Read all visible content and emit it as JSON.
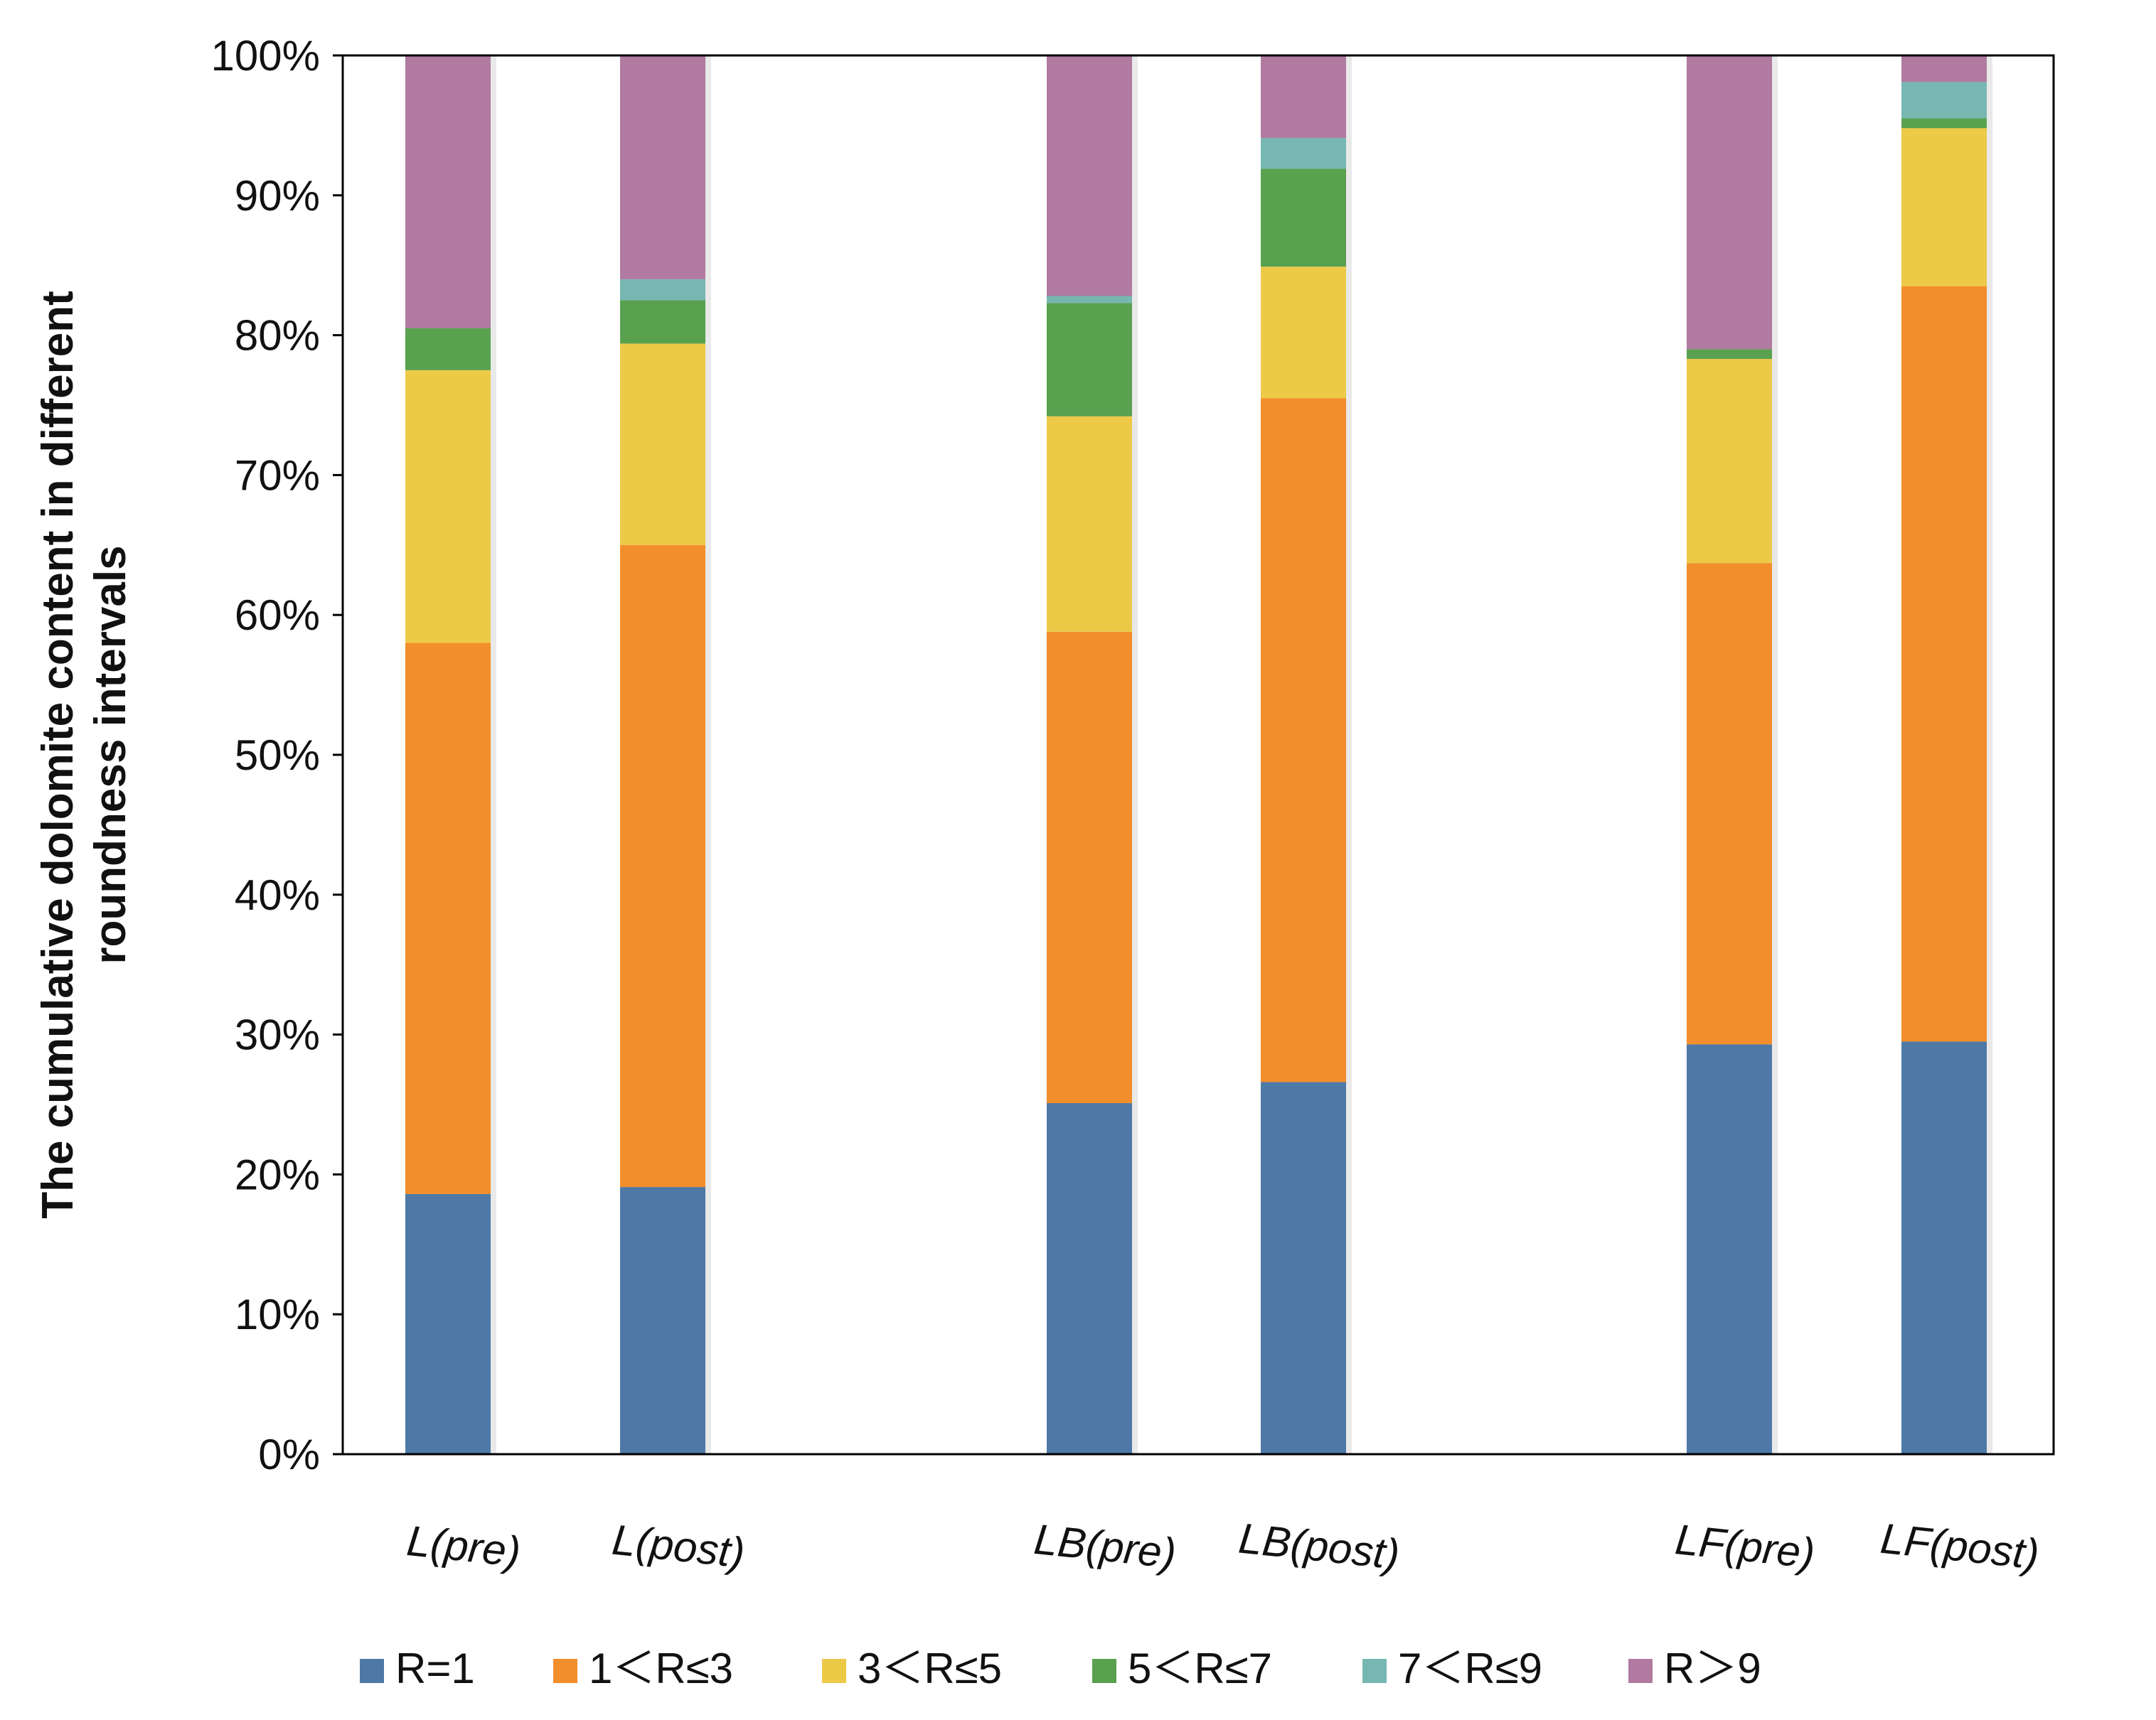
{
  "chart_data": {
    "type": "bar",
    "stacked": true,
    "percent_stacked": true,
    "title": "",
    "xlabel": "",
    "ylabel": "The cumulative dolomite content in different roundness intervals",
    "ylabel_lines": [
      "The cumulative dolomite content in different",
      "roundness intervals"
    ],
    "ylim": [
      0,
      100
    ],
    "yticks": [
      "0%",
      "10%",
      "20%",
      "30%",
      "40%",
      "50%",
      "60%",
      "70%",
      "80%",
      "90%",
      "100%"
    ],
    "categories": [
      "L(pre)",
      "L(post)",
      "LB(pre)",
      "LB(post)",
      "LF(pre)",
      "LF(post)"
    ],
    "groups": [
      [
        "L(pre)",
        "L(post)"
      ],
      [
        "LB(pre)",
        "LB(post)"
      ],
      [
        "LF(pre)",
        "LF(post)"
      ]
    ],
    "legend_position": "bottom",
    "series": [
      {
        "name": "R=1",
        "color": "#4e79a7",
        "values": [
          18.6,
          19.1,
          25.1,
          26.6,
          29.3,
          29.5
        ]
      },
      {
        "name": "1＜R≤3",
        "color": "#f28e2b",
        "values": [
          39.4,
          45.9,
          33.7,
          48.9,
          34.4,
          54.0
        ]
      },
      {
        "name": "3＜R≤5",
        "color": "#edc948",
        "values": [
          19.5,
          14.4,
          15.4,
          9.4,
          14.6,
          11.3
        ]
      },
      {
        "name": "5＜R≤7",
        "color": "#59a14f",
        "values": [
          3.0,
          3.1,
          8.1,
          7.0,
          0.7,
          0.7
        ]
      },
      {
        "name": "7＜R≤9",
        "color": "#76b7b2",
        "values": [
          0.0,
          1.5,
          0.5,
          2.2,
          0.0,
          2.6
        ]
      },
      {
        "name": "R＞9",
        "color": "#b07aa1",
        "values": [
          19.5,
          16.0,
          17.2,
          5.9,
          21.0,
          1.9
        ]
      }
    ]
  }
}
